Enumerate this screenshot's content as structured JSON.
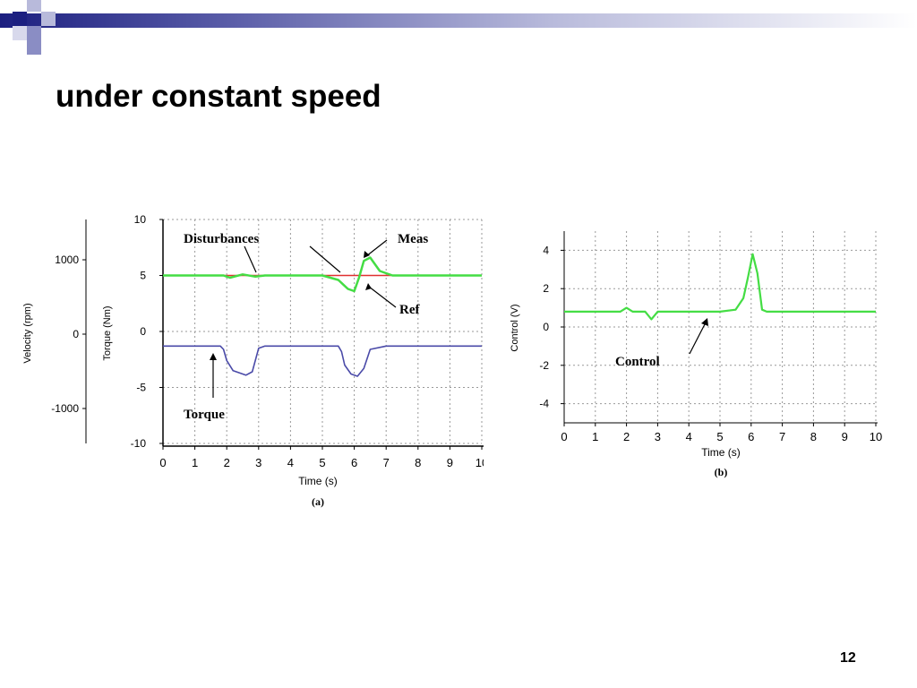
{
  "slide": {
    "title": "under constant speed",
    "page_number": "12"
  },
  "colors": {
    "header_dark": "#1c1f80",
    "header_mid": "#5a5da8",
    "header_light": "#b8badb",
    "meas": "#44dd44",
    "ref": "#e03030",
    "torque": "#4a4aa8",
    "control": "#44dd44"
  },
  "chart_data": [
    {
      "type": "line",
      "caption": "(a)",
      "xlabel": "Time (s)",
      "xlim": [
        0,
        10
      ],
      "x_ticks": [
        "0",
        "1",
        "2",
        "3",
        "4",
        "5",
        "6",
        "7",
        "8",
        "9",
        "10"
      ],
      "ylabel_left": "Velocity (rpm)",
      "ylabel_right": "Torque (Nm)",
      "velocity_ticks": [
        "1000",
        "0",
        "-1000"
      ],
      "torque_ticks": [
        "10",
        "5",
        "0",
        "-5",
        "-10"
      ],
      "torque_lim": [
        -10,
        10
      ],
      "grid": true,
      "annotations": [
        "Disturbances",
        "Meas",
        "Ref",
        "Torque"
      ],
      "series": [
        {
          "key": "ref",
          "color": "#e03030",
          "x": [
            0,
            10
          ],
          "y": [
            5,
            5
          ]
        },
        {
          "key": "meas",
          "color": "#44dd44",
          "x": [
            0,
            1,
            1.9,
            2.1,
            2.5,
            2.9,
            3.2,
            4,
            5,
            5.5,
            5.8,
            6.0,
            6.15,
            6.3,
            6.5,
            6.8,
            7.2,
            8,
            10
          ],
          "y": [
            5,
            5,
            5,
            4.8,
            5.1,
            4.9,
            5,
            5,
            5,
            4.6,
            3.8,
            3.6,
            4.8,
            6.3,
            6.6,
            5.4,
            5,
            5,
            5
          ]
        },
        {
          "key": "torque",
          "color": "#4a4aa8",
          "x": [
            0,
            1.0,
            1.8,
            1.9,
            2.0,
            2.2,
            2.6,
            2.8,
            3.0,
            3.2,
            5.0,
            5.5,
            5.6,
            5.7,
            5.9,
            6.1,
            6.3,
            6.5,
            7,
            10
          ],
          "y": [
            -1.3,
            -1.3,
            -1.3,
            -1.6,
            -2.6,
            -3.5,
            -3.9,
            -3.6,
            -1.5,
            -1.3,
            -1.3,
            -1.3,
            -1.8,
            -3.0,
            -3.8,
            -4.0,
            -3.3,
            -1.6,
            -1.3,
            -1.3
          ]
        }
      ]
    },
    {
      "type": "line",
      "caption": "(b)",
      "xlabel": "Time (s)",
      "ylabel": "Control (V)",
      "xlim": [
        0,
        10
      ],
      "ylim": [
        -5,
        5
      ],
      "x_ticks": [
        "0",
        "1",
        "2",
        "3",
        "4",
        "5",
        "6",
        "7",
        "8",
        "9",
        "10"
      ],
      "y_ticks": [
        "4",
        "2",
        "0",
        "-2",
        "-4"
      ],
      "grid": true,
      "annotations": [
        "Control"
      ],
      "series": [
        {
          "key": "control",
          "color": "#44dd44",
          "x": [
            0,
            1.8,
            2.0,
            2.2,
            2.6,
            2.8,
            3.0,
            3.3,
            4,
            5,
            5.5,
            5.75,
            5.9,
            6.05,
            6.2,
            6.35,
            6.5,
            6.8,
            10
          ],
          "y": [
            0.8,
            0.8,
            1.0,
            0.8,
            0.8,
            0.4,
            0.8,
            0.8,
            0.8,
            0.8,
            0.9,
            1.5,
            2.6,
            3.8,
            2.8,
            0.9,
            0.8,
            0.8,
            0.8
          ]
        }
      ]
    }
  ]
}
